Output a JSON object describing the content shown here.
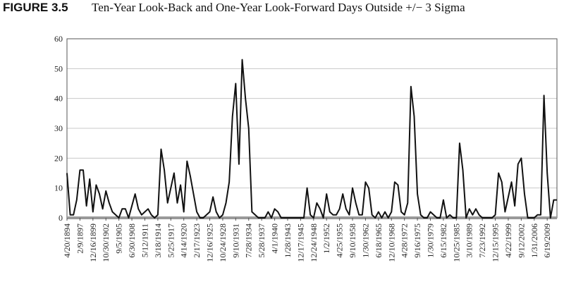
{
  "chart_data": {
    "type": "line",
    "label": "FIGURE 3.5",
    "title": "Ten-Year Look-Back and One-Year Look-Forward Days Outside +/− 3 Sigma",
    "categories": [
      "4/20/1894",
      null,
      null,
      null,
      "2/9/1897",
      null,
      null,
      null,
      "12/16/1899",
      null,
      null,
      null,
      "10/30/1902",
      null,
      null,
      null,
      "9/5/1905",
      null,
      null,
      null,
      "6/30/1908",
      null,
      null,
      null,
      "5/12/1911",
      null,
      null,
      null,
      "3/18/1914",
      null,
      null,
      null,
      "5/25/1917",
      null,
      null,
      null,
      "4/14/1920",
      null,
      null,
      null,
      "2/17/1923",
      null,
      null,
      null,
      "12/16/1925",
      null,
      null,
      null,
      "10/24/1928",
      null,
      null,
      null,
      "9/10/1931",
      null,
      null,
      null,
      "7/28/1934",
      null,
      null,
      null,
      "5/28/1937",
      null,
      null,
      null,
      "4/1/1940",
      null,
      null,
      null,
      "1/28/1943",
      null,
      null,
      null,
      "12/17/1945",
      null,
      null,
      null,
      "12/24/1948",
      null,
      null,
      null,
      "1/2/1952",
      null,
      null,
      null,
      "4/25/1955",
      null,
      null,
      null,
      "9/10/1958",
      null,
      null,
      null,
      "1/30/1962",
      null,
      null,
      null,
      "6/18/1965",
      null,
      null,
      null,
      "12/10/1968",
      null,
      null,
      null,
      "4/28/1972",
      null,
      null,
      null,
      "9/16/1975",
      null,
      null,
      null,
      "1/30/1979",
      null,
      null,
      null,
      "6/15/1982",
      null,
      null,
      null,
      "10/25/1985",
      null,
      null,
      null,
      "3/10/1989",
      null,
      null,
      null,
      "7/23/1992",
      null,
      null,
      null,
      "12/15/1995",
      null,
      null,
      null,
      "4/22/1999",
      null,
      null,
      null,
      "9/12/2002",
      null,
      null,
      null,
      "1/31/2006",
      null,
      null,
      null,
      "6/19/2009",
      null,
      null,
      null
    ],
    "values": [
      15,
      1,
      1,
      6,
      16,
      16,
      4,
      13,
      2,
      11,
      8,
      3,
      9,
      5,
      2,
      1,
      0,
      3,
      3,
      0,
      4,
      8,
      3,
      1,
      2,
      3,
      1,
      0,
      1,
      23,
      16,
      5,
      10,
      15,
      5,
      11,
      2,
      19,
      14,
      8,
      2,
      0,
      0,
      1,
      2,
      7,
      2,
      0,
      1,
      5,
      12,
      34,
      45,
      18,
      53,
      40,
      30,
      2,
      1,
      0,
      0,
      0,
      2,
      0,
      3,
      2,
      0,
      0,
      0,
      0,
      0,
      0,
      0,
      0,
      10,
      1,
      0,
      5,
      3,
      0,
      8,
      2,
      1,
      1,
      3,
      8,
      3,
      1,
      10,
      5,
      1,
      1,
      12,
      10,
      1,
      0,
      2,
      0,
      2,
      0,
      2,
      12,
      11,
      2,
      1,
      5,
      44,
      34,
      8,
      1,
      0,
      0,
      2,
      1,
      0,
      0,
      6,
      0,
      1,
      0,
      0,
      25,
      16,
      0,
      3,
      1,
      3,
      1,
      0,
      0,
      0,
      0,
      1,
      15,
      12,
      2,
      7,
      12,
      4,
      18,
      20,
      8,
      0,
      0,
      0,
      1,
      1,
      41,
      15,
      0,
      6,
      6
    ],
    "color": "#111111",
    "ylim": [
      0,
      60
    ],
    "yticks": [
      0,
      10,
      20,
      30,
      40,
      50,
      60
    ],
    "grid": true
  }
}
